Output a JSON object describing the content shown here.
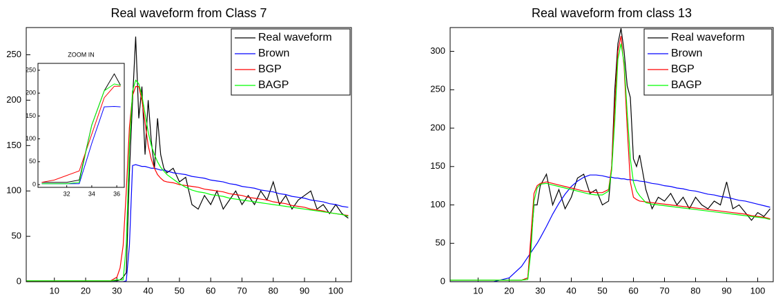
{
  "chart_data": [
    {
      "type": "line",
      "title": "Real waveform from Class 7",
      "x": [
        1,
        5,
        10,
        15,
        20,
        25,
        28,
        30,
        31,
        32,
        33,
        34,
        35,
        36,
        37,
        38,
        39,
        40,
        41,
        42,
        43,
        44,
        45,
        46,
        48,
        50,
        52,
        54,
        56,
        58,
        60,
        62,
        64,
        66,
        68,
        70,
        72,
        74,
        76,
        78,
        80,
        82,
        84,
        86,
        88,
        90,
        92,
        94,
        96,
        98,
        100,
        102,
        104
      ],
      "series": [
        {
          "name": "Real waveform",
          "color": "#000000",
          "values": [
            1,
            1,
            1,
            1,
            1,
            1,
            1,
            1,
            2,
            5,
            10,
            120,
            200,
            270,
            180,
            215,
            140,
            200,
            155,
            125,
            180,
            140,
            125,
            120,
            125,
            110,
            115,
            85,
            80,
            95,
            85,
            100,
            80,
            90,
            100,
            85,
            95,
            85,
            100,
            90,
            110,
            85,
            95,
            80,
            90,
            95,
            100,
            80,
            85,
            75,
            85,
            75,
            70
          ]
        },
        {
          "name": "Brown",
          "color": "#0000ff",
          "values": [
            0,
            0,
            0,
            0,
            0,
            0,
            0,
            0,
            0,
            0,
            1,
            40,
            128,
            129,
            128,
            127,
            127,
            126,
            125,
            125,
            124,
            123,
            123,
            122,
            120,
            119,
            118,
            116,
            115,
            114,
            112,
            111,
            110,
            108,
            107,
            105,
            104,
            103,
            101,
            100,
            99,
            97,
            96,
            94,
            93,
            92,
            90,
            89,
            88,
            86,
            85,
            83,
            82
          ]
        },
        {
          "name": "BGP",
          "color": "#ff0000",
          "values": [
            1,
            1,
            1,
            1,
            1,
            1,
            1,
            5,
            15,
            40,
            100,
            170,
            205,
            215,
            215,
            200,
            175,
            150,
            135,
            125,
            118,
            114,
            111,
            110,
            109,
            107,
            106,
            105,
            104,
            102,
            101,
            100,
            99,
            97,
            96,
            95,
            93,
            92,
            91,
            90,
            88,
            87,
            86,
            84,
            83,
            82,
            80,
            79,
            78,
            76,
            75,
            74,
            73
          ]
        },
        {
          "name": "BAGP",
          "color": "#00ff00",
          "values": [
            1,
            1,
            1,
            1,
            1,
            1,
            1,
            2,
            2,
            2,
            40,
            150,
            210,
            222,
            218,
            205,
            185,
            165,
            150,
            140,
            132,
            126,
            122,
            118,
            113,
            108,
            104,
            101,
            99,
            98,
            96,
            95,
            94,
            92,
            91,
            90,
            89,
            88,
            87,
            86,
            85,
            84,
            83,
            82,
            81,
            80,
            79,
            78,
            77,
            76,
            75,
            74,
            72
          ]
        }
      ],
      "xlim": [
        1,
        105
      ],
      "ylim": [
        0,
        280
      ],
      "xticks": [
        10,
        20,
        30,
        40,
        50,
        60,
        70,
        80,
        90,
        100
      ],
      "yticks": [
        0,
        50,
        100,
        150,
        200,
        250
      ],
      "grid": false,
      "legend": "upper right"
    },
    {
      "type": "line",
      "title": "ZOOM IN",
      "x": [
        30,
        31,
        32,
        33,
        34,
        35,
        35.8,
        36.3
      ],
      "series": [
        {
          "name": "Real waveform",
          "color": "#000000",
          "values": [
            5,
            5,
            5,
            10,
            130,
            205,
            242,
            217
          ]
        },
        {
          "name": "Brown",
          "color": "#0000ff",
          "values": [
            2,
            2,
            2,
            2,
            90,
            170,
            171,
            170
          ]
        },
        {
          "name": "BGP",
          "color": "#ff0000",
          "values": [
            5,
            10,
            20,
            30,
            110,
            190,
            215,
            215
          ]
        },
        {
          "name": "BAGP",
          "color": "#00ff00",
          "values": [
            2,
            2,
            2,
            5,
            130,
            205,
            220,
            217
          ]
        }
      ],
      "xlim": [
        29.7,
        36.6
      ],
      "ylim": [
        -6,
        265
      ],
      "xticks": [
        32,
        34,
        36
      ],
      "yticks": [
        0,
        50,
        100,
        150,
        200,
        250
      ],
      "grid": false
    },
    {
      "type": "line",
      "title": "Real waveform from class 13",
      "x": [
        1,
        5,
        10,
        15,
        20,
        24,
        26,
        27,
        28,
        29,
        30,
        32,
        34,
        36,
        38,
        40,
        42,
        44,
        46,
        48,
        50,
        52,
        53,
        54,
        55,
        56,
        57,
        58,
        59,
        60,
        61,
        62,
        64,
        66,
        68,
        70,
        72,
        74,
        76,
        78,
        80,
        82,
        84,
        86,
        88,
        90,
        92,
        94,
        96,
        98,
        100,
        102,
        104
      ],
      "series": [
        {
          "name": "Real waveform",
          "color": "#000000",
          "values": [
            2,
            2,
            2,
            2,
            2,
            2,
            5,
            50,
            100,
            100,
            125,
            140,
            100,
            120,
            95,
            110,
            135,
            140,
            115,
            120,
            100,
            105,
            150,
            250,
            310,
            330,
            300,
            255,
            240,
            160,
            150,
            165,
            120,
            95,
            110,
            105,
            115,
            100,
            110,
            95,
            110,
            100,
            95,
            105,
            100,
            130,
            95,
            100,
            90,
            80,
            90,
            85,
            95
          ]
        },
        {
          "name": "Brown",
          "color": "#0000ff",
          "values": [
            0,
            0,
            0,
            0,
            5,
            20,
            32,
            38,
            44,
            50,
            57,
            72,
            88,
            102,
            114,
            124,
            131,
            136,
            139,
            139,
            138,
            136,
            136,
            135,
            135,
            134,
            134,
            133,
            133,
            132,
            132,
            131,
            130,
            128,
            127,
            125,
            124,
            122,
            121,
            119,
            118,
            116,
            114,
            113,
            111,
            110,
            108,
            106,
            105,
            103,
            101,
            99,
            97
          ]
        },
        {
          "name": "BGP",
          "color": "#ff0000",
          "values": [
            2,
            2,
            2,
            2,
            2,
            2,
            5,
            60,
            115,
            125,
            128,
            130,
            128,
            126,
            124,
            122,
            120,
            118,
            117,
            116,
            116,
            120,
            150,
            230,
            300,
            320,
            280,
            200,
            130,
            110,
            107,
            105,
            104,
            103,
            102,
            101,
            100,
            99,
            98,
            97,
            96,
            95,
            94,
            93,
            92,
            91,
            90,
            89,
            88,
            86,
            85,
            84,
            82
          ]
        },
        {
          "name": "BAGP",
          "color": "#00ff00",
          "values": [
            2,
            2,
            2,
            2,
            2,
            2,
            3,
            40,
            105,
            122,
            127,
            128,
            126,
            124,
            122,
            120,
            118,
            116,
            114,
            113,
            113,
            118,
            145,
            210,
            290,
            310,
            285,
            220,
            160,
            130,
            118,
            112,
            103,
            101,
            100,
            99,
            98,
            97,
            96,
            95,
            94,
            93,
            92,
            91,
            90,
            89,
            88,
            87,
            86,
            85,
            84,
            83,
            81
          ]
        }
      ],
      "xlim": [
        1,
        105
      ],
      "ylim": [
        0,
        331
      ],
      "xticks": [
        10,
        20,
        30,
        40,
        50,
        60,
        70,
        80,
        90,
        100
      ],
      "yticks": [
        0,
        50,
        100,
        150,
        200,
        250,
        300
      ],
      "grid": false,
      "legend": "upper right"
    }
  ]
}
